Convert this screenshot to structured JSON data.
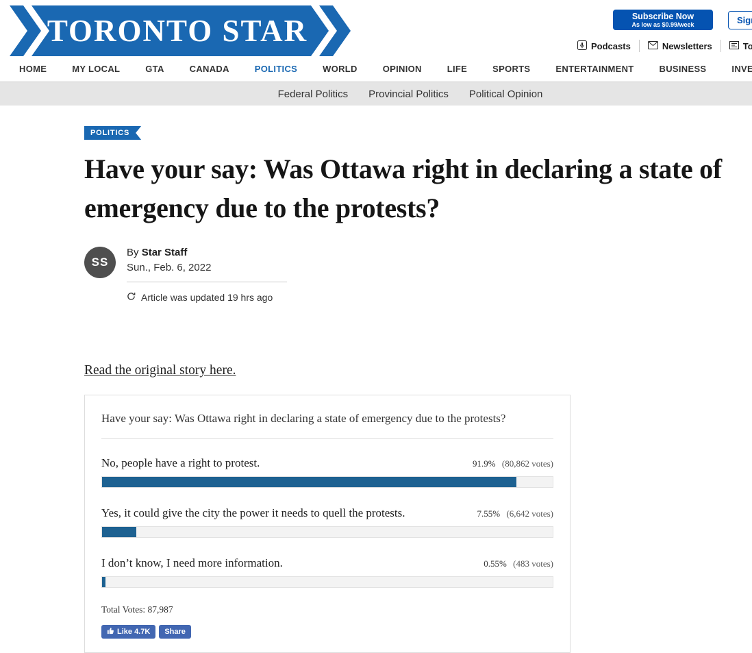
{
  "colors": {
    "brand_blue": "#1a68b2",
    "subscribe_blue": "#0553b1",
    "poll_bar_blue": "#1d6191",
    "facebook_blue": "#4267b2",
    "subnav_bg": "#e5e5e5"
  },
  "header": {
    "logo": "TORONTO STAR",
    "subscribe": {
      "title": "Subscribe Now",
      "subtitle": "As low as $0.99/week"
    },
    "sign_in": "Sign In",
    "utility": {
      "podcasts": "Podcasts",
      "newsletters": "Newsletters",
      "todays_paper": "Today's Paper"
    }
  },
  "nav": {
    "items": [
      "HOME",
      "MY LOCAL",
      "GTA",
      "CANADA",
      "POLITICS",
      "WORLD",
      "OPINION",
      "LIFE",
      "SPORTS",
      "ENTERTAINMENT",
      "BUSINESS",
      "INVESTIGATIONS"
    ],
    "active": "POLITICS"
  },
  "subnav": {
    "items": [
      "Federal Politics",
      "Provincial Politics",
      "Political Opinion"
    ]
  },
  "article": {
    "category": "POLITICS",
    "title": "Have your say: Was Ottawa right in declaring a state of emergency due to the protests?",
    "author_initials": "SS",
    "byline_prefix": "By",
    "author": "Star Staff",
    "date": "Sun., Feb. 6, 2022",
    "updated": "Article was updated 19 hrs ago",
    "original_link": "Read the original story here."
  },
  "poll": {
    "question": "Have your say: Was Ottawa right in declaring a state of emergency due to the protests?",
    "options": [
      {
        "label": "No, people have a right to protest.",
        "pct": "91.9%",
        "votes": "(80,862 votes)",
        "value": 91.9
      },
      {
        "label": "Yes, it could give the city the power it needs to quell the protests.",
        "pct": "7.55%",
        "votes": "(6,642 votes)",
        "value": 7.55
      },
      {
        "label": "I don’t know, I need more information.",
        "pct": "0.55%",
        "votes": "(483 votes)",
        "value": 0.55
      }
    ],
    "total": "Total Votes: 87,987",
    "like_label": "Like 4.7K",
    "share_label": "Share"
  }
}
